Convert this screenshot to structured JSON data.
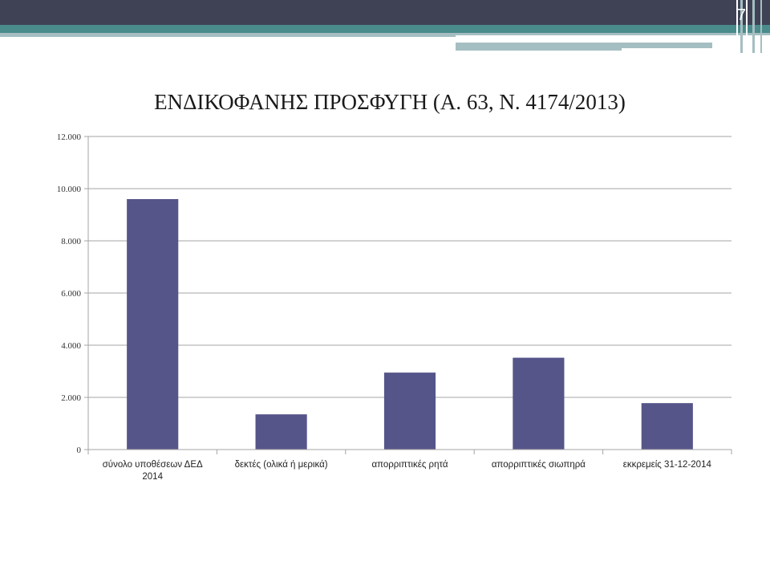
{
  "slide": {
    "number": "7"
  },
  "theme": {
    "header_dark": "#3f4255",
    "header_teal": "#4a8b8b",
    "header_light": "#a5bec1",
    "bar_color": "#56558a",
    "grid_color": "#a6a6a6"
  },
  "chart_data": {
    "type": "bar",
    "title": "ΕΝΔΙΚΟΦΑΝΗΣ ΠΡΟΣΦΥΓΗ (Α. 63, Ν. 4174/2013)",
    "xlabel": "",
    "ylabel": "",
    "categories": [
      [
        "σύνολο υποθέσεων ΔΕΔ",
        "2014"
      ],
      [
        "δεκτές (ολικά ή μερικά)"
      ],
      [
        "απορριπτικές ρητά"
      ],
      [
        "απορριπτικές σιωπηρά"
      ],
      [
        "εκκρεμείς 31-12-2014"
      ]
    ],
    "values": [
      9600,
      1350,
      2950,
      3520,
      1780
    ],
    "ylim": [
      0,
      12000
    ],
    "yticks": [
      0,
      2000,
      4000,
      6000,
      8000,
      10000,
      12000
    ],
    "ytick_labels": [
      "0",
      "2.000",
      "4.000",
      "6.000",
      "8.000",
      "10.000",
      "12.000"
    ],
    "grid": true,
    "legend": "none"
  }
}
